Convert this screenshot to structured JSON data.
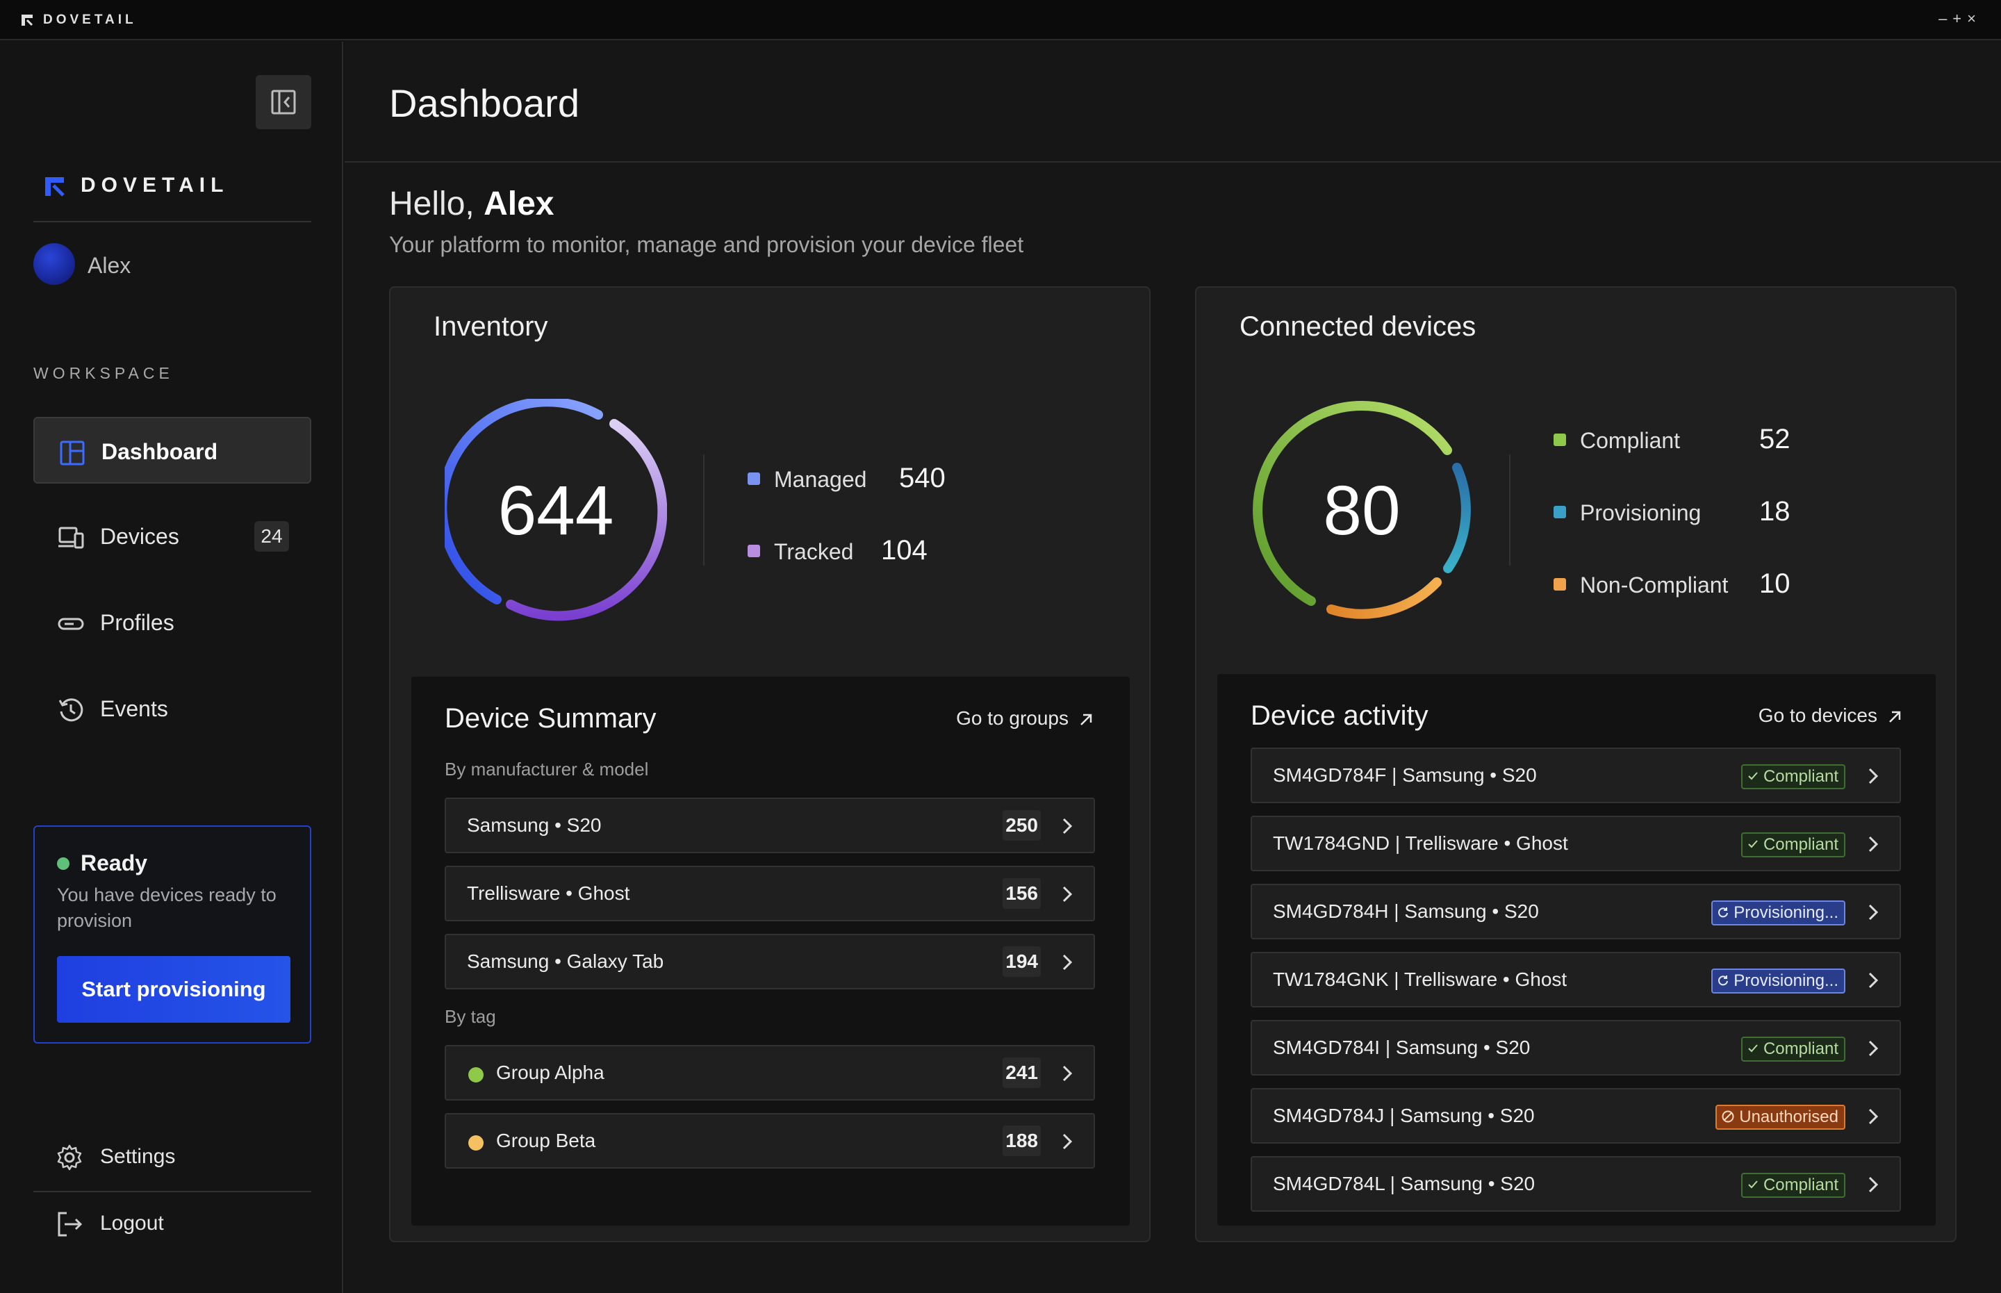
{
  "titlebar": {
    "app_name": "DOVETAIL",
    "controls": "–+×"
  },
  "sidebar": {
    "brand": "DOVETAIL",
    "user": "Alex",
    "workspace_label": "WORKSPACE",
    "nav": [
      {
        "label": "Dashboard",
        "icon": "dashboard-icon",
        "active": true
      },
      {
        "label": "Devices",
        "icon": "devices-icon",
        "badge": "24"
      },
      {
        "label": "Profiles",
        "icon": "profiles-icon"
      },
      {
        "label": "Events",
        "icon": "history-icon"
      }
    ],
    "ready": {
      "title": "Ready",
      "text": "You have devices ready to provision",
      "button": "Start provisioning"
    },
    "settings": "Settings",
    "logout": "Logout"
  },
  "header": {
    "title": "Dashboard"
  },
  "greeting": {
    "hello": "Hello,",
    "name": "Alex",
    "subtitle": "Your platform to monitor, manage and provision your device fleet"
  },
  "inventory": {
    "title": "Inventory",
    "total": "644",
    "legend": [
      {
        "label": "Managed",
        "value": "540",
        "color": "#7b93f0"
      },
      {
        "label": "Tracked",
        "value": "104",
        "color": "#b98ee0"
      }
    ]
  },
  "connected": {
    "title": "Connected devices",
    "total": "80",
    "legend": [
      {
        "label": "Compliant",
        "value": "52",
        "color": "#8fc94a"
      },
      {
        "label": "Provisioning",
        "value": "18",
        "color": "#3aa0c8"
      },
      {
        "label": "Non-Compliant",
        "value": "10",
        "color": "#f2a24a"
      }
    ]
  },
  "device_summary": {
    "title": "Device Summary",
    "link": "Go to groups",
    "by_model_label": "By manufacturer & model",
    "models": [
      {
        "label": "Samsung • S20",
        "count": "250"
      },
      {
        "label": "Trellisware • Ghost",
        "count": "156"
      },
      {
        "label": "Samsung • Galaxy Tab",
        "count": "194"
      }
    ],
    "by_tag_label": "By tag",
    "tags": [
      {
        "label": "Group Alpha",
        "count": "241",
        "color": "#8fc94a"
      },
      {
        "label": "Group Beta",
        "count": "188",
        "color": "#f5c060"
      }
    ]
  },
  "device_activity": {
    "title": "Device activity",
    "link": "Go to devices",
    "rows": [
      {
        "label": "SM4GD784F | Samsung • S20",
        "status": "Compliant",
        "kind": "compliant"
      },
      {
        "label": "TW1784GND | Trellisware • Ghost",
        "status": "Compliant",
        "kind": "compliant"
      },
      {
        "label": "SM4GD784H | Samsung • S20",
        "status": "Provisioning...",
        "kind": "provisioning"
      },
      {
        "label": "TW1784GNK | Trellisware • Ghost",
        "status": "Provisioning...",
        "kind": "provisioning"
      },
      {
        "label": "SM4GD784I | Samsung • S20",
        "status": "Compliant",
        "kind": "compliant"
      },
      {
        "label": "SM4GD784J | Samsung • S20",
        "status": "Unauthorised",
        "kind": "unauthorised"
      },
      {
        "label": "SM4GD784L | Samsung • S20",
        "status": "Compliant",
        "kind": "compliant"
      }
    ]
  }
}
